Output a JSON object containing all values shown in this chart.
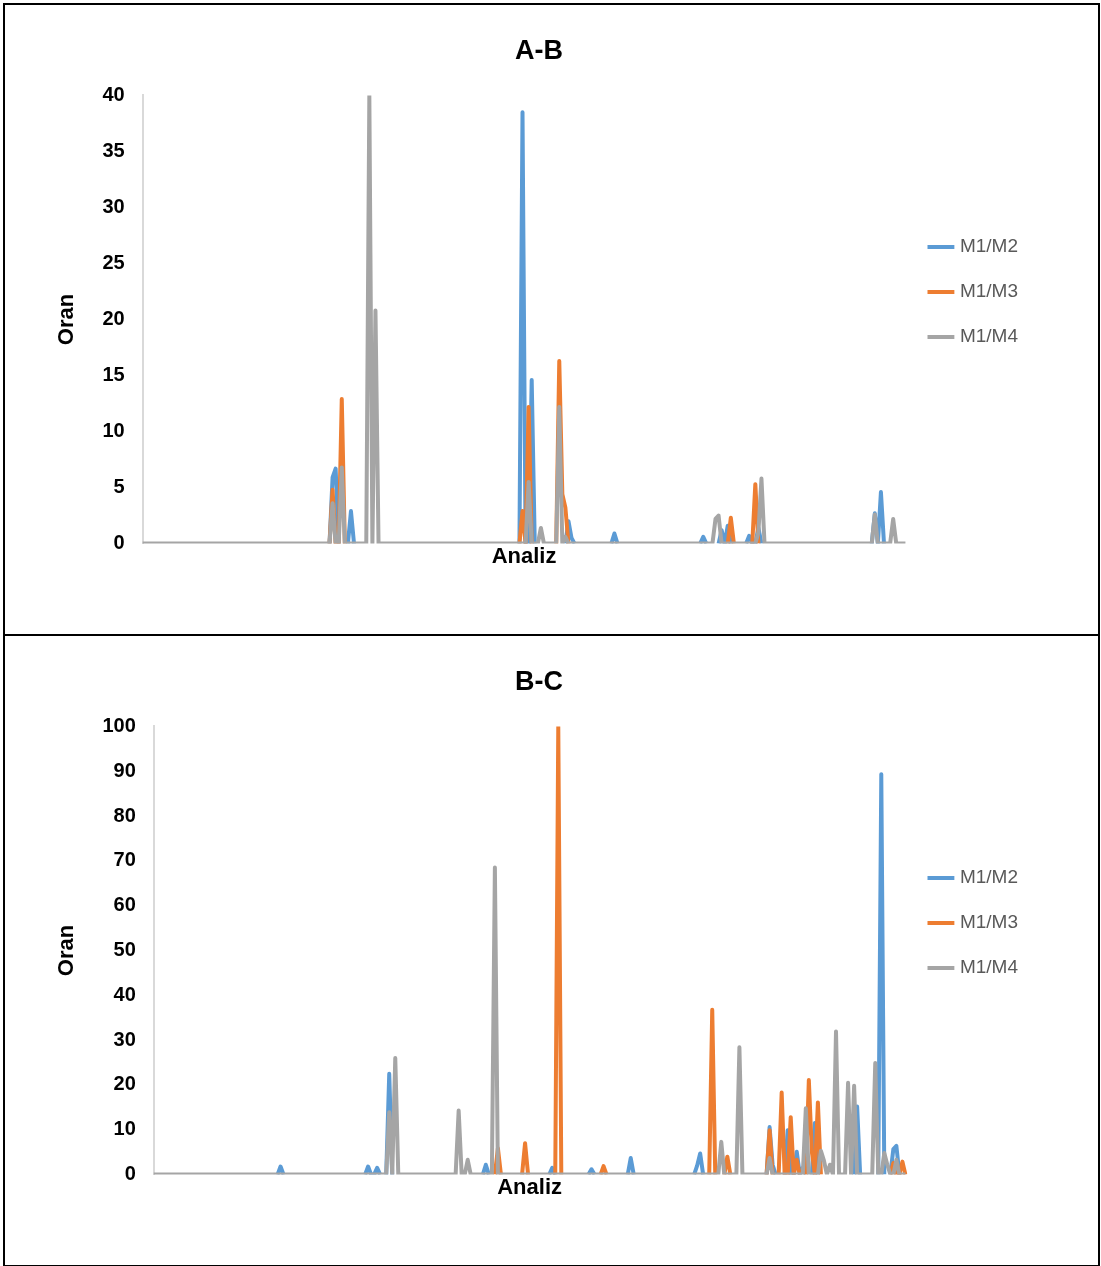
{
  "chart_data": [
    {
      "type": "line",
      "title": "A-B",
      "xlabel": "Analiz",
      "ylabel": "Oran",
      "tick_labels": "y",
      "legend": "right",
      "marker": "none",
      "ylim": [
        0,
        40
      ],
      "yticks": [
        0,
        5,
        10,
        15,
        20,
        25,
        30,
        35,
        40
      ],
      "categories": [
        null,
        null,
        null,
        null,
        null,
        null,
        null,
        null,
        null,
        null,
        null,
        null,
        null,
        null,
        null,
        null,
        null,
        null,
        null,
        null,
        null,
        null,
        null,
        null,
        null,
        null,
        null,
        null,
        null,
        null,
        null,
        null,
        null,
        null,
        null,
        null,
        null,
        null,
        null,
        null,
        null,
        null,
        null,
        null,
        null,
        null,
        null,
        null,
        null,
        null,
        null,
        null,
        null,
        null,
        null,
        null,
        null,
        null,
        null,
        null,
        null,
        null,
        null,
        null,
        null,
        null,
        null,
        null,
        null,
        null,
        null,
        null,
        null,
        null,
        null,
        null,
        null,
        null,
        null,
        null,
        null,
        null,
        null,
        null,
        null,
        null,
        null,
        null,
        null,
        null,
        null,
        null,
        null,
        null,
        null,
        null,
        null,
        null,
        null,
        null,
        null,
        null,
        null,
        null,
        null,
        null,
        null,
        null,
        null,
        null,
        null,
        null,
        null,
        null,
        null,
        null,
        null,
        null,
        null,
        null,
        null,
        null,
        null,
        null,
        null,
        null,
        null,
        null,
        null,
        null,
        null,
        null,
        null,
        null,
        null,
        null,
        null,
        null,
        null,
        null,
        null,
        null,
        null,
        null,
        null,
        null,
        null,
        null,
        null,
        null,
        null,
        null,
        null,
        null,
        null,
        null,
        null,
        null,
        null,
        null,
        null,
        null,
        null,
        null,
        null,
        null,
        null,
        null,
        null,
        null,
        null,
        null,
        null,
        null,
        null,
        null,
        null,
        null,
        null,
        null,
        null,
        null,
        null,
        null,
        null,
        null,
        null,
        null,
        null,
        null,
        null,
        null,
        null,
        null,
        null,
        null,
        null,
        null,
        null,
        null,
        null,
        null,
        null,
        null,
        null,
        null,
        null,
        null,
        null,
        null,
        null,
        null,
        null,
        null,
        null,
        null,
        null,
        null,
        null,
        null,
        null,
        null,
        null,
        null,
        null,
        null,
        null,
        null,
        null,
        null,
        null,
        null,
        null,
        null,
        null,
        null,
        null,
        null,
        null,
        null,
        null,
        null,
        null,
        null,
        null,
        null,
        null,
        null,
        null,
        null
      ],
      "series": [
        {
          "name": "M1/M2",
          "color": "#5b9bd5",
          "values": [
            null,
            null,
            null,
            null,
            null,
            null,
            null,
            null,
            null,
            null,
            null,
            null,
            null,
            null,
            null,
            null,
            null,
            null,
            null,
            null,
            null,
            null,
            null,
            null,
            null,
            null,
            null,
            null,
            null,
            null,
            null,
            null,
            null,
            null,
            null,
            null,
            null,
            null,
            null,
            null,
            null,
            null,
            null,
            null,
            null,
            null,
            null,
            null,
            null,
            null,
            null,
            null,
            null,
            null,
            null,
            null,
            null,
            null,
            null,
            null,
            null,
            0,
            5.9,
            6.7,
            0,
            null,
            null,
            0,
            2.9,
            0,
            null,
            null,
            null,
            null,
            null,
            null,
            null,
            null,
            null,
            null,
            null,
            null,
            null,
            null,
            null,
            null,
            null,
            null,
            null,
            null,
            null,
            null,
            null,
            null,
            null,
            null,
            null,
            null,
            null,
            null,
            null,
            null,
            null,
            null,
            null,
            null,
            null,
            null,
            null,
            null,
            null,
            null,
            null,
            null,
            null,
            null,
            null,
            null,
            null,
            null,
            null,
            null,
            null,
            0,
            38.5,
            0,
            0,
            14.6,
            0,
            null,
            null,
            null,
            null,
            null,
            null,
            null,
            null,
            null,
            0,
            2.0,
            0.5,
            0,
            null,
            null,
            null,
            null,
            null,
            null,
            null,
            null,
            null,
            null,
            null,
            0,
            0.9,
            0,
            null,
            null,
            null,
            null,
            null,
            null,
            null,
            null,
            null,
            null,
            null,
            null,
            null,
            null,
            null,
            null,
            null,
            null,
            null,
            null,
            null,
            null,
            null,
            null,
            null,
            null,
            0,
            0.6,
            0,
            null,
            null,
            null,
            0,
            1.2,
            0,
            1.6,
            0,
            null,
            null,
            null,
            null,
            0,
            0.7,
            0,
            0,
            1.4,
            0,
            null,
            null,
            null,
            null,
            null,
            null,
            null,
            null,
            null,
            null,
            null,
            null,
            null,
            null,
            null,
            null,
            null,
            null,
            null,
            null,
            null,
            null,
            null,
            null,
            null,
            null,
            null,
            null,
            null,
            null,
            null,
            null,
            null,
            null,
            null,
            0,
            2.7,
            0,
            4.6,
            0,
            null,
            null,
            null,
            null,
            null,
            null,
            null
          ]
        },
        {
          "name": "M1/M3",
          "color": "#ed7d31",
          "values": [
            null,
            null,
            null,
            null,
            null,
            null,
            null,
            null,
            null,
            null,
            null,
            null,
            null,
            null,
            null,
            null,
            null,
            null,
            null,
            null,
            null,
            null,
            null,
            null,
            null,
            null,
            null,
            null,
            null,
            null,
            null,
            null,
            null,
            null,
            null,
            null,
            null,
            null,
            null,
            null,
            null,
            null,
            null,
            null,
            null,
            null,
            null,
            null,
            null,
            null,
            null,
            null,
            null,
            null,
            null,
            null,
            null,
            null,
            null,
            null,
            null,
            0,
            4.8,
            0,
            0,
            12.9,
            0,
            null,
            null,
            null,
            null,
            null,
            null,
            null,
            null,
            null,
            null,
            null,
            null,
            null,
            null,
            null,
            null,
            null,
            null,
            null,
            null,
            null,
            null,
            null,
            null,
            null,
            null,
            null,
            null,
            null,
            null,
            null,
            null,
            null,
            null,
            null,
            null,
            null,
            null,
            null,
            null,
            null,
            null,
            null,
            null,
            null,
            null,
            null,
            null,
            null,
            null,
            null,
            null,
            null,
            null,
            null,
            null,
            0,
            2.9,
            0,
            12.2,
            0,
            null,
            null,
            null,
            null,
            null,
            null,
            null,
            0,
            16.3,
            4.4,
            3.2,
            0,
            null,
            null,
            null,
            null,
            null,
            null,
            null,
            null,
            null,
            null,
            null,
            null,
            null,
            null,
            null,
            null,
            null,
            null,
            null,
            null,
            null,
            null,
            null,
            null,
            null,
            null,
            null,
            null,
            null,
            null,
            null,
            null,
            null,
            null,
            null,
            null,
            null,
            null,
            null,
            null,
            null,
            null,
            null,
            null,
            null,
            null,
            null,
            null,
            null,
            null,
            null,
            0,
            2.3,
            0,
            null,
            null,
            null,
            null,
            null,
            0,
            5.3,
            0,
            null,
            null,
            null,
            null,
            null,
            null,
            null,
            null,
            null,
            null,
            null,
            null,
            null,
            null,
            null,
            null,
            null,
            null,
            null,
            null,
            null,
            null,
            null,
            null,
            null,
            null,
            null,
            null,
            null,
            null,
            null,
            null,
            null,
            null,
            null,
            null,
            null,
            null,
            null,
            null,
            null,
            null,
            null,
            null,
            null,
            null,
            null,
            null
          ]
        },
        {
          "name": "M1/M4",
          "color": "#a5a5a5",
          "values": [
            0,
            0,
            0,
            0,
            0,
            0,
            0,
            0,
            0,
            0,
            0,
            0,
            0,
            0,
            0,
            0,
            0,
            0,
            0,
            0,
            0,
            0,
            0,
            0,
            0,
            0,
            0,
            0,
            0,
            0,
            0,
            0,
            0,
            0,
            0,
            0,
            0,
            0,
            0,
            0,
            0,
            0,
            0,
            0,
            0,
            0,
            0,
            0,
            0,
            0,
            0,
            0,
            0,
            0,
            0,
            0,
            0,
            0,
            0,
            0,
            0,
            0,
            3.6,
            0,
            0,
            6.8,
            0,
            0,
            0,
            0,
            0,
            0,
            0,
            0,
            40,
            0,
            20.8,
            0,
            0,
            0,
            0,
            0,
            0,
            0,
            0,
            0,
            0,
            0,
            0,
            0,
            0,
            0,
            0,
            0,
            0,
            0,
            0,
            0,
            0,
            0,
            0,
            0,
            0,
            0,
            0,
            0,
            0,
            0,
            0,
            0,
            0,
            0,
            0,
            0,
            0,
            0,
            0,
            0,
            0,
            0,
            0,
            0,
            0,
            0,
            0,
            0,
            5.5,
            0,
            0,
            0,
            1.4,
            0,
            0,
            0,
            0,
            0,
            12.2,
            0,
            0.6,
            0,
            0,
            0,
            0,
            0,
            0,
            0,
            0,
            0,
            0,
            0,
            0,
            0,
            0,
            0,
            0,
            0,
            0,
            0,
            0,
            0,
            0,
            0,
            0,
            0,
            0,
            0,
            0,
            0,
            0,
            0,
            0,
            0,
            0,
            0,
            0,
            0,
            0,
            0,
            0,
            0,
            0,
            0,
            0,
            0,
            0,
            0,
            0,
            2.2,
            2.5,
            0,
            0,
            0,
            0,
            0,
            0,
            0,
            0,
            0,
            0,
            0,
            0,
            1.0,
            5.8,
            0,
            0,
            0,
            0,
            0,
            0,
            0,
            0,
            0,
            0,
            0,
            0,
            0,
            0,
            0,
            0,
            0,
            0,
            0,
            0,
            0,
            0,
            0,
            0,
            0,
            0,
            0,
            0,
            0,
            0,
            0,
            0,
            0,
            0,
            0,
            0,
            2.6,
            0,
            0,
            0,
            0,
            0,
            2.2,
            0,
            0,
            0,
            0
          ]
        }
      ]
    },
    {
      "type": "line",
      "title": "B-C",
      "xlabel": "Analiz",
      "ylabel": "Oran",
      "tick_labels": "y",
      "legend": "right",
      "marker": "none",
      "ylim": [
        0,
        100
      ],
      "yticks": [
        0,
        10,
        20,
        30,
        40,
        50,
        60,
        70,
        80,
        90,
        100
      ],
      "categories": [
        null,
        null,
        null,
        null,
        null,
        null,
        null,
        null,
        null,
        null,
        null,
        null,
        null,
        null,
        null,
        null,
        null,
        null,
        null,
        null,
        null,
        null,
        null,
        null,
        null,
        null,
        null,
        null,
        null,
        null,
        null,
        null,
        null,
        null,
        null,
        null,
        null,
        null,
        null,
        null,
        null,
        null,
        null,
        null,
        null,
        null,
        null,
        null,
        null,
        null,
        null,
        null,
        null,
        null,
        null,
        null,
        null,
        null,
        null,
        null,
        null,
        null,
        null,
        null,
        null,
        null,
        null,
        null,
        null,
        null,
        null,
        null,
        null,
        null,
        null,
        null,
        null,
        null,
        null,
        null,
        null,
        null,
        null,
        null,
        null,
        null,
        null,
        null,
        null,
        null,
        null,
        null,
        null,
        null,
        null,
        null,
        null,
        null,
        null,
        null,
        null,
        null,
        null,
        null,
        null,
        null,
        null,
        null,
        null,
        null,
        null,
        null,
        null,
        null,
        null,
        null,
        null,
        null,
        null,
        null,
        null,
        null,
        null,
        null,
        null,
        null,
        null,
        null,
        null,
        null,
        null,
        null,
        null,
        null,
        null,
        null,
        null,
        null,
        null,
        null,
        null,
        null,
        null,
        null,
        null,
        null,
        null,
        null,
        null,
        null,
        null,
        null,
        null,
        null,
        null,
        null,
        null,
        null,
        null,
        null,
        null,
        null,
        null,
        null,
        null,
        null,
        null,
        null,
        null,
        null,
        null,
        null,
        null,
        null,
        null,
        null,
        null,
        null,
        null,
        null,
        null,
        null,
        null,
        null,
        null,
        null,
        null,
        null,
        null,
        null,
        null,
        null,
        null,
        null,
        null,
        null,
        null,
        null,
        null,
        null,
        null,
        null,
        null,
        null,
        null,
        null,
        null,
        null,
        null,
        null,
        null,
        null,
        null,
        null,
        null,
        null,
        null,
        null,
        null,
        null,
        null,
        null,
        null,
        null,
        null,
        null,
        null,
        null,
        null,
        null,
        null,
        null,
        null,
        null,
        null,
        null,
        null,
        null,
        null,
        null,
        null,
        null,
        null,
        null,
        null,
        null,
        null,
        null,
        null,
        null
      ],
      "series": [
        {
          "name": "M1/M2",
          "color": "#5b9bd5",
          "values": [
            null,
            null,
            null,
            null,
            null,
            null,
            null,
            null,
            null,
            null,
            null,
            null,
            null,
            null,
            null,
            null,
            null,
            null,
            null,
            null,
            null,
            null,
            null,
            null,
            null,
            null,
            null,
            null,
            null,
            null,
            null,
            null,
            null,
            null,
            null,
            null,
            null,
            null,
            null,
            null,
            null,
            0,
            1.8,
            0,
            null,
            null,
            null,
            null,
            null,
            null,
            null,
            null,
            null,
            null,
            null,
            null,
            null,
            null,
            null,
            null,
            null,
            null,
            null,
            null,
            null,
            null,
            null,
            null,
            null,
            null,
            0,
            1.8,
            0,
            0,
            1.5,
            0,
            null,
            0,
            22.5,
            0,
            null,
            null,
            null,
            null,
            null,
            null,
            null,
            null,
            null,
            null,
            null,
            null,
            null,
            null,
            null,
            null,
            null,
            null,
            null,
            null,
            null,
            null,
            null,
            null,
            null,
            null,
            null,
            null,
            null,
            0,
            2.2,
            0,
            null,
            null,
            null,
            null,
            null,
            null,
            null,
            null,
            null,
            null,
            null,
            null,
            null,
            null,
            null,
            null,
            null,
            null,
            null,
            0,
            1.5,
            0,
            null,
            null,
            null,
            null,
            null,
            null,
            null,
            null,
            null,
            null,
            0,
            1.2,
            0,
            null,
            null,
            null,
            null,
            null,
            null,
            null,
            null,
            null,
            null,
            0,
            3.7,
            0,
            null,
            null,
            null,
            null,
            null,
            null,
            null,
            null,
            null,
            null,
            null,
            null,
            null,
            null,
            null,
            null,
            null,
            null,
            null,
            0,
            2.0,
            4.7,
            0,
            null,
            null,
            null,
            null,
            null,
            null,
            null,
            null,
            null,
            null,
            null,
            null,
            null,
            null,
            null,
            null,
            null,
            null,
            null,
            null,
            0,
            10.6,
            2.2,
            0,
            null,
            null,
            0,
            9.9,
            0,
            0,
            5.1,
            0,
            1.5,
            0,
            null,
            0,
            11.5,
            0,
            null,
            null,
            null,
            null,
            null,
            null,
            null,
            null,
            null,
            null,
            null,
            0,
            15.2,
            0,
            null,
            null,
            null,
            null,
            null,
            0,
            89.3,
            0,
            null,
            0,
            5.7,
            6.4,
            0,
            null,
            null
          ]
        },
        {
          "name": "M1/M3",
          "color": "#ed7d31",
          "values": [
            null,
            null,
            null,
            null,
            null,
            null,
            null,
            null,
            null,
            null,
            null,
            null,
            null,
            null,
            null,
            null,
            null,
            null,
            null,
            null,
            null,
            null,
            null,
            null,
            null,
            null,
            null,
            null,
            null,
            null,
            null,
            null,
            null,
            null,
            null,
            null,
            null,
            null,
            null,
            null,
            null,
            null,
            null,
            null,
            null,
            null,
            null,
            null,
            null,
            null,
            null,
            null,
            null,
            null,
            null,
            null,
            null,
            null,
            null,
            null,
            null,
            null,
            null,
            null,
            null,
            null,
            null,
            null,
            null,
            null,
            null,
            null,
            null,
            null,
            null,
            null,
            null,
            null,
            null,
            null,
            null,
            null,
            null,
            null,
            null,
            null,
            null,
            null,
            null,
            null,
            null,
            null,
            null,
            null,
            null,
            null,
            null,
            null,
            null,
            null,
            null,
            null,
            null,
            null,
            null,
            null,
            null,
            null,
            null,
            null,
            null,
            null,
            null,
            0,
            5.9,
            0,
            null,
            null,
            null,
            null,
            null,
            null,
            0,
            7.0,
            0,
            null,
            null,
            null,
            null,
            null,
            null,
            null,
            null,
            0,
            100,
            0,
            null,
            null,
            null,
            null,
            null,
            null,
            null,
            null,
            null,
            null,
            null,
            null,
            0,
            1.9,
            0,
            null,
            null,
            null,
            null,
            null,
            null,
            null,
            null,
            null,
            null,
            null,
            null,
            null,
            null,
            null,
            null,
            null,
            null,
            null,
            null,
            null,
            null,
            null,
            null,
            null,
            null,
            null,
            null,
            null,
            null,
            null,
            null,
            null,
            0,
            36.8,
            0,
            null,
            null,
            0,
            4.0,
            0,
            null,
            null,
            null,
            null,
            null,
            null,
            null,
            null,
            null,
            null,
            null,
            0,
            9.9,
            0,
            null,
            0,
            18.3,
            0,
            0,
            12.8,
            0,
            3.3,
            0,
            null,
            0,
            21.1,
            5.1,
            0,
            16.1,
            0,
            null,
            null,
            null,
            null,
            null,
            null,
            null,
            null,
            null,
            null,
            null,
            null,
            null,
            null,
            null,
            null,
            null,
            null,
            null,
            null,
            null,
            null,
            0,
            2.6,
            0,
            0,
            2.9,
            0
          ]
        },
        {
          "name": "M1/M4",
          "color": "#a5a5a5",
          "values": [
            0,
            0,
            0,
            0,
            0,
            0,
            0,
            0,
            0,
            0,
            0,
            0,
            0,
            0,
            0,
            0,
            0,
            0,
            0,
            0,
            0,
            0,
            0,
            0,
            0,
            0,
            0,
            0,
            0,
            0,
            0,
            0,
            0,
            0,
            0,
            0,
            0,
            0,
            0,
            0,
            0,
            0,
            0,
            0,
            0,
            0,
            0,
            0,
            0,
            0,
            0,
            0,
            0,
            0,
            0,
            0,
            0,
            0,
            0,
            0,
            0,
            0,
            0,
            0,
            0,
            0,
            0,
            0,
            0,
            0,
            0,
            0,
            0,
            0,
            0,
            0,
            0,
            0,
            13.9,
            0,
            26,
            0,
            0,
            0,
            0,
            0,
            0,
            0,
            0,
            0,
            0,
            0,
            0,
            0,
            0,
            0,
            0,
            0,
            0,
            0,
            0,
            14.3,
            0,
            0,
            3.3,
            0,
            0,
            0,
            0,
            0,
            0,
            0,
            0,
            68.5,
            0,
            0,
            0,
            0,
            0,
            0,
            0,
            0,
            0,
            0,
            0,
            0,
            0,
            0,
            0,
            0,
            0,
            0,
            0,
            0,
            0,
            0,
            0,
            0,
            0,
            0,
            0,
            0,
            0,
            0,
            0,
            0,
            0,
            0,
            0,
            0,
            0,
            0,
            0,
            0,
            0,
            0,
            0,
            0,
            0,
            0,
            0,
            0,
            0,
            0,
            0,
            0,
            0,
            0,
            0,
            0,
            0,
            0,
            0,
            0,
            0,
            0,
            0,
            0,
            0,
            0,
            0,
            0,
            0,
            0,
            0,
            0,
            0,
            0,
            7.3,
            0,
            0,
            0,
            0,
            0,
            28.4,
            0,
            0,
            0,
            0,
            0,
            0,
            0,
            0,
            0,
            3.7,
            0,
            0,
            0,
            0,
            0,
            0,
            0,
            0,
            0,
            0,
            0,
            14.8,
            0,
            0,
            0,
            0,
            5.3,
            3.1,
            0,
            2.2,
            0,
            31.9,
            0,
            0,
            0,
            20.5,
            0,
            19.8,
            0,
            0,
            0,
            0,
            0,
            0,
            24.9,
            0,
            0,
            4.8,
            2.2,
            0,
            0,
            3.3,
            0,
            0,
            0
          ]
        }
      ]
    }
  ]
}
